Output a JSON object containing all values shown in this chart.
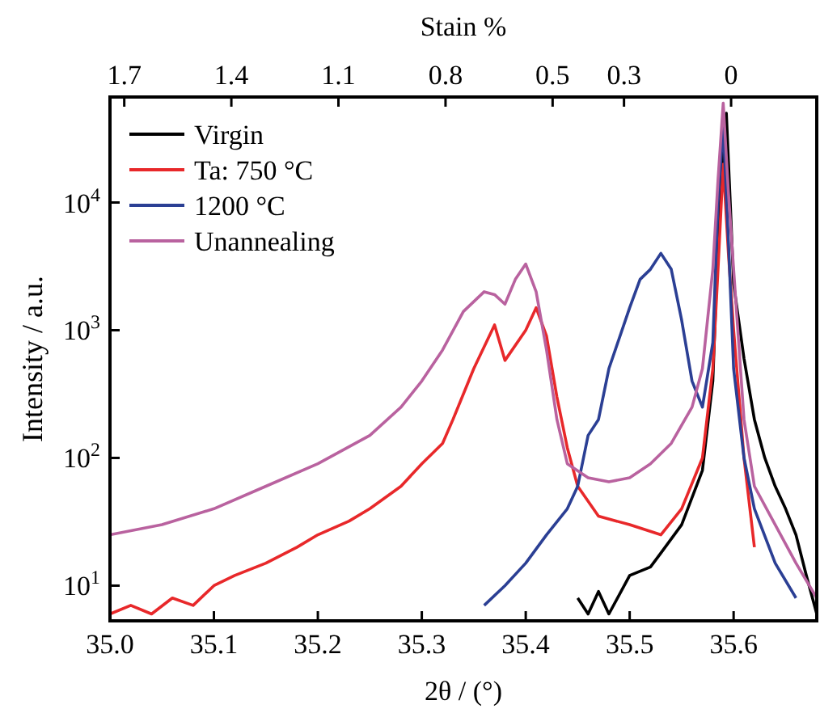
{
  "chart_data": {
    "type": "line",
    "xlabel": "2θ / (°)",
    "ylabel": "Intensity / a.u.",
    "x2label": "Stain %",
    "log": "y",
    "legend": "top left",
    "grid": false,
    "xlim": [
      35.0,
      35.68
    ],
    "ylim": [
      5.3,
      67000
    ],
    "xticks": [
      {
        "value": 35.0,
        "label": "35.0"
      },
      35.1,
      35.2,
      35.3,
      35.4,
      35.5,
      35.6
    ],
    "yticks": [
      {
        "value": 10,
        "label": "10$^{1}$"
      },
      {
        "value": 100,
        "label": "10$^{2}$"
      },
      {
        "value": 1000,
        "label": "10$^{3}$"
      },
      {
        "value": 10000,
        "label": "10$^{4}$"
      }
    ],
    "x2lim": [
      1.74,
      -0.24
    ],
    "x2ticks": [
      1.7,
      1.4,
      1.1,
      0.8,
      0.5,
      0.3,
      0
    ],
    "series": [
      {
        "name": "Virgin",
        "color": "#000000",
        "x": [
          35.45,
          35.46,
          35.47,
          35.48,
          35.5,
          35.52,
          35.53,
          35.55,
          35.57,
          35.58,
          35.586,
          35.593,
          35.597,
          35.6,
          35.61,
          35.62,
          35.63,
          35.64,
          35.65,
          35.66,
          35.67,
          35.68
        ],
        "values": [
          8,
          6,
          9,
          6,
          12,
          14,
          18,
          30,
          80,
          400,
          8000,
          50000,
          9000,
          2300,
          600,
          200,
          100,
          60,
          40,
          25,
          12,
          6
        ]
      },
      {
        "name": "Ta: 750 °C",
        "color": "#e8282a",
        "x": [
          35.0,
          35.02,
          35.04,
          35.06,
          35.08,
          35.1,
          35.12,
          35.15,
          35.18,
          35.2,
          35.23,
          35.25,
          35.28,
          35.3,
          35.32,
          35.33,
          35.35,
          35.37,
          35.38,
          35.4,
          35.41,
          35.42,
          35.43,
          35.44,
          35.45,
          35.47,
          35.5,
          35.53,
          35.55,
          35.57,
          35.58,
          35.585,
          35.59,
          35.595,
          35.6,
          35.61,
          35.62
        ],
        "values": [
          6,
          7,
          6,
          8,
          7,
          10,
          12,
          15,
          20,
          25,
          32,
          40,
          60,
          90,
          130,
          200,
          500,
          1100,
          580,
          1000,
          1500,
          900,
          300,
          120,
          60,
          35,
          30,
          25,
          40,
          100,
          500,
          3000,
          20000,
          4000,
          1000,
          100,
          20
        ]
      },
      {
        "name": "1200 °C",
        "color": "#2b3f94",
        "x": [
          35.36,
          35.38,
          35.4,
          35.42,
          35.44,
          35.45,
          35.46,
          35.47,
          35.48,
          35.5,
          35.51,
          35.52,
          35.53,
          35.54,
          35.55,
          35.56,
          35.57,
          35.58,
          35.585,
          35.59,
          35.595,
          35.6,
          35.61,
          35.62,
          35.64,
          35.66
        ],
        "values": [
          7,
          10,
          15,
          25,
          40,
          60,
          150,
          200,
          500,
          1500,
          2500,
          3000,
          4000,
          3000,
          1200,
          400,
          250,
          800,
          10000,
          40000,
          5000,
          500,
          100,
          40,
          15,
          8
        ]
      },
      {
        "name": "Unannealing",
        "color": "#b9629f",
        "x": [
          35.0,
          35.05,
          35.1,
          35.15,
          35.2,
          35.25,
          35.28,
          35.3,
          35.32,
          35.34,
          35.36,
          35.37,
          35.38,
          35.39,
          35.4,
          35.41,
          35.42,
          35.43,
          35.44,
          35.46,
          35.48,
          35.5,
          35.52,
          35.54,
          35.56,
          35.57,
          35.58,
          35.585,
          35.59,
          35.595,
          35.6,
          35.61,
          35.62,
          35.64,
          35.66,
          35.68
        ],
        "values": [
          25,
          30,
          40,
          60,
          90,
          150,
          250,
          400,
          700,
          1400,
          2000,
          1900,
          1600,
          2500,
          3300,
          2000,
          700,
          200,
          90,
          70,
          65,
          70,
          90,
          130,
          250,
          500,
          3000,
          15000,
          60000,
          12000,
          3000,
          200,
          60,
          30,
          15,
          8
        ]
      }
    ]
  }
}
